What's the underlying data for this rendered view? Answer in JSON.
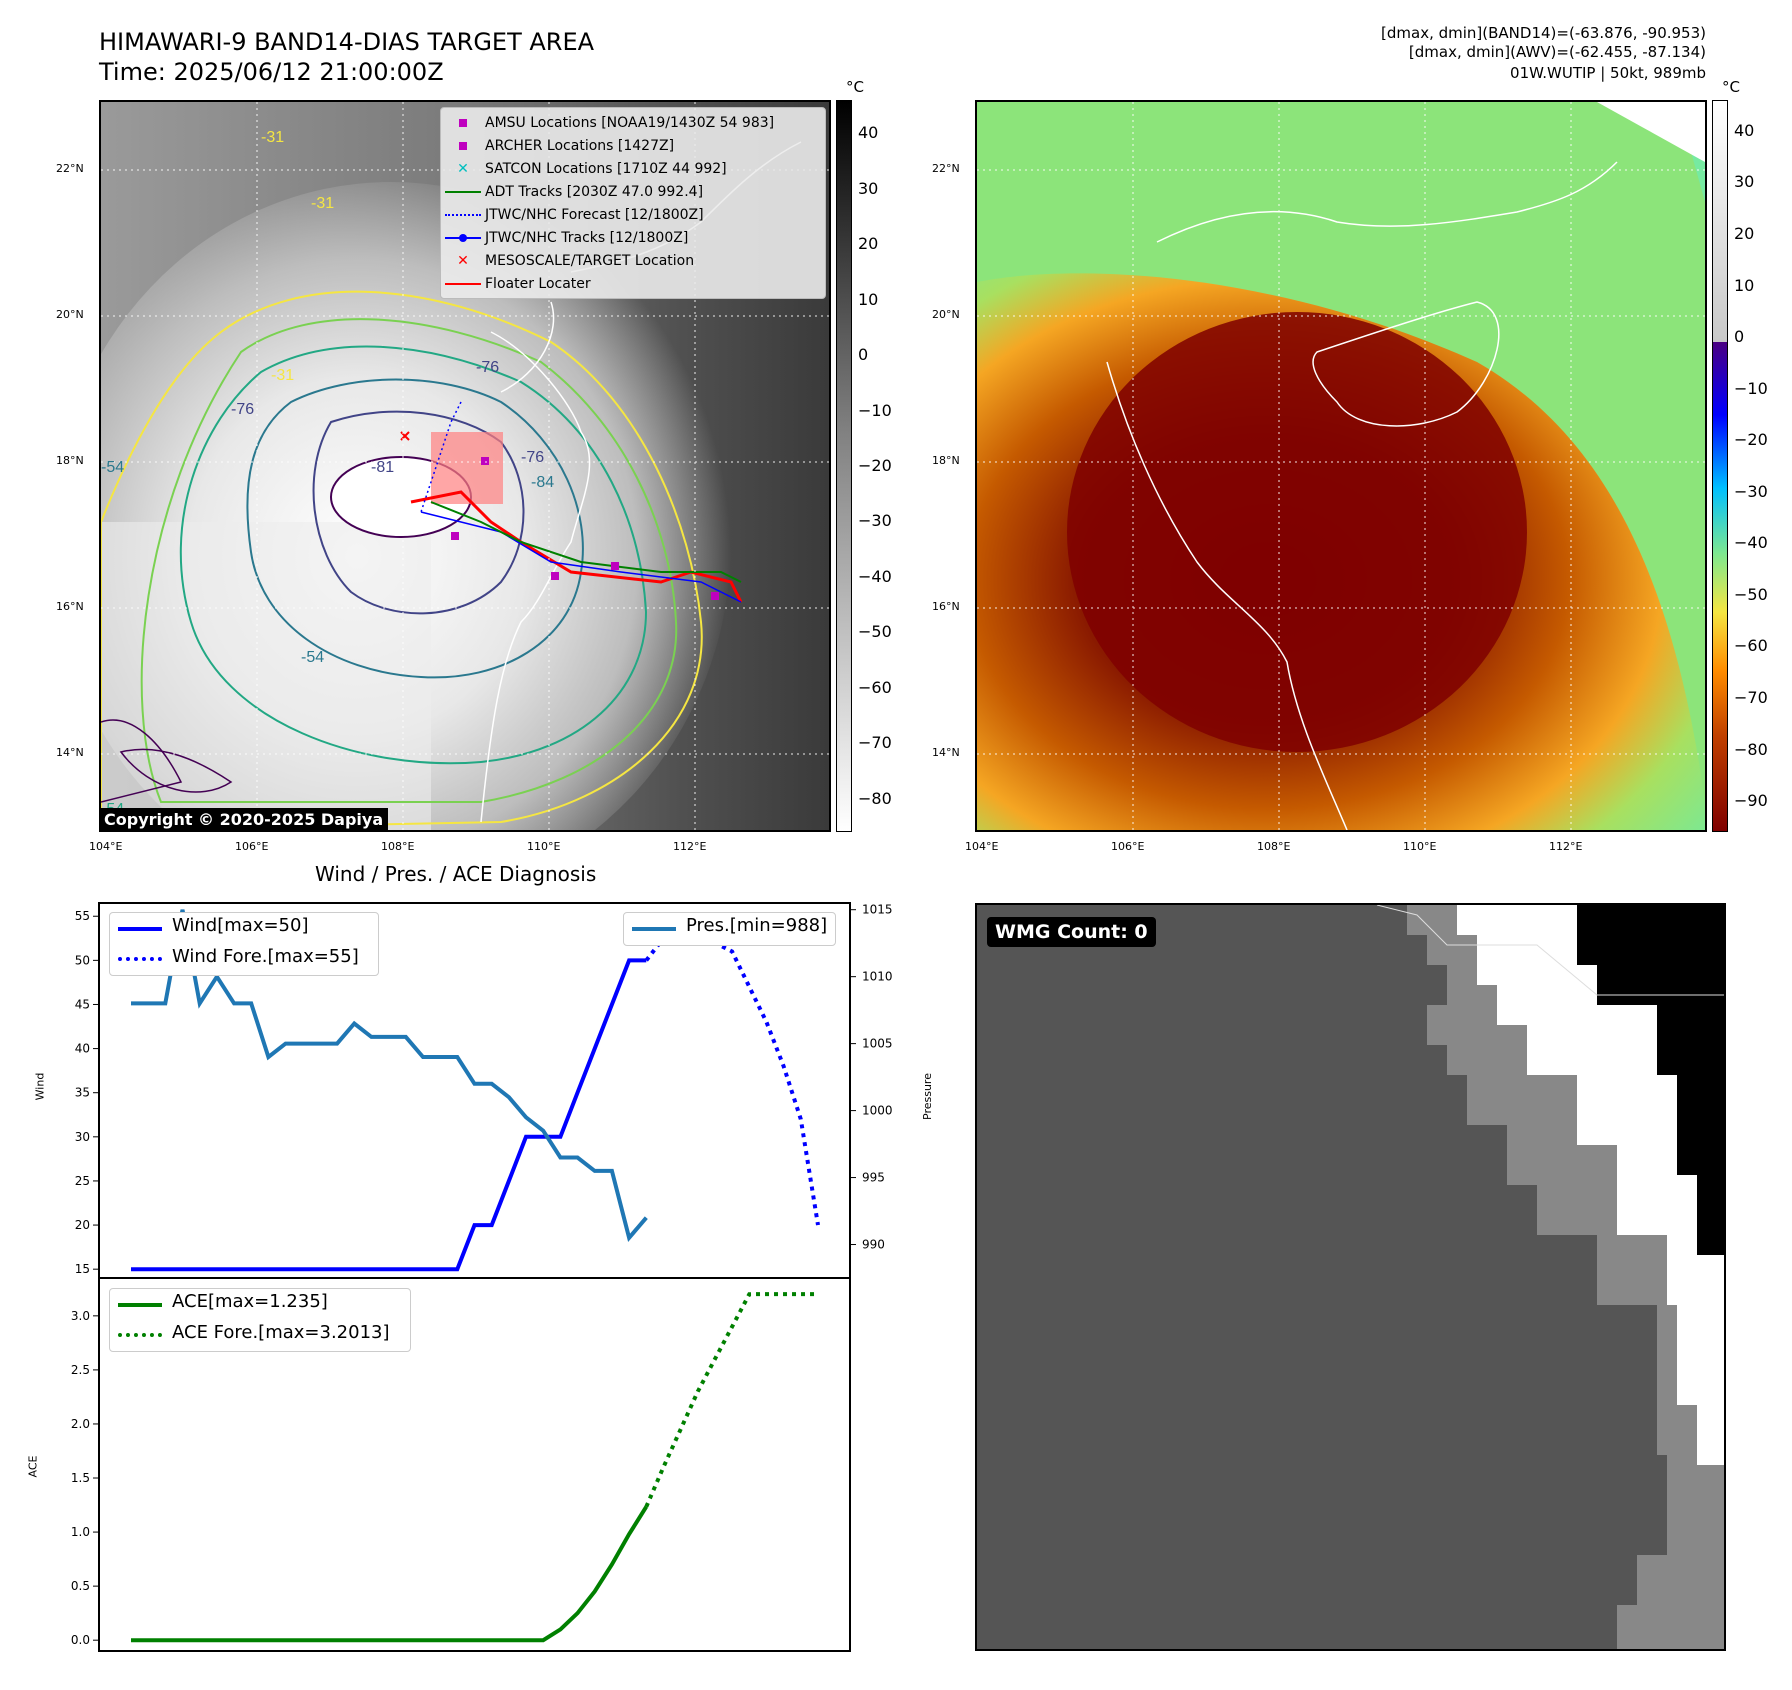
{
  "header": {
    "title": "HIMAWARI-9 BAND14-DIAS TARGET AREA",
    "time": "Time: 2025/06/12 21:00:00Z",
    "diag1": "[dmax, dmin](BAND14)=(-63.876, -90.953)",
    "diag2": "[dmax, dmin](AWV)=(-62.455, -87.134)",
    "diag3": "01W.WUTIP | 50kt, 989mb"
  },
  "map": {
    "lon_ticks": [
      "104°E",
      "106°E",
      "108°E",
      "110°E",
      "112°E"
    ],
    "lat_ticks": [
      "22°N",
      "20°N",
      "18°N",
      "16°N",
      "14°N"
    ],
    "copyright": "Copyright © 2020-2025 Dapiya",
    "contour_labels": [
      "-31",
      "-31",
      "-31",
      "-76",
      "-76",
      "-81",
      "-76",
      "-54",
      "-54",
      "-84",
      "-54"
    ],
    "legend": [
      {
        "label": "AMSU Locations [NOAA19/1430Z 54 983]",
        "color": "#bf00bf",
        "symbol": "square"
      },
      {
        "label": "ARCHER Locations [1427Z]",
        "color": "#bf00bf",
        "symbol": "square"
      },
      {
        "label": "SATCON Locations [1710Z 44 992]",
        "color": "#00bfbf",
        "symbol": "x"
      },
      {
        "label": "ADT Tracks [2030Z 47.0 992.4]",
        "color": "#008000",
        "symbol": "line"
      },
      {
        "label": "JTWC/NHC Forecast [12/1800Z]",
        "color": "#0000ff",
        "symbol": "dotted"
      },
      {
        "label": "JTWC/NHC Tracks [12/1800Z]",
        "color": "#0000ff",
        "symbol": "line-dot"
      },
      {
        "label": "MESOSCALE/TARGET Location",
        "color": "#ff0000",
        "symbol": "x"
      },
      {
        "label": "Floater Locater",
        "color": "#ff0000",
        "symbol": "line"
      }
    ]
  },
  "colorbar_left": {
    "unit": "°C",
    "ticks": [
      "40",
      "30",
      "20",
      "10",
      "0",
      "−10",
      "−20",
      "−30",
      "−40",
      "−50",
      "−60",
      "−70",
      "−80"
    ]
  },
  "colorbar_right": {
    "unit": "°C",
    "ticks": [
      "40",
      "30",
      "20",
      "10",
      "0",
      "−10",
      "−20",
      "−30",
      "−40",
      "−50",
      "−60",
      "−70",
      "−80",
      "−90"
    ]
  },
  "wmg": {
    "label": "WMG Count: 0"
  },
  "chart_data": [
    {
      "type": "line",
      "title": "Wind / Pres. / ACE Diagnosis",
      "ylabel": "Wind",
      "y2label": "Pressure",
      "ylim": [
        14,
        56.5
      ],
      "y2lim": [
        987.5,
        1015.5
      ],
      "yticks": [
        "55",
        "50",
        "45",
        "40",
        "35",
        "30",
        "25",
        "20",
        "15"
      ],
      "y2ticks": [
        "1015",
        "1010",
        "1005",
        "1000",
        "995",
        "990"
      ],
      "xlim": [
        0,
        40
      ],
      "series": [
        {
          "name": "Wind[max=50]",
          "color": "#0000ff",
          "style": "solid",
          "axis": "left",
          "x": [
            0,
            1,
            2,
            3,
            4,
            5,
            6,
            7,
            8,
            9,
            10,
            11,
            12,
            13,
            14,
            15,
            16,
            17,
            18,
            19,
            20,
            21,
            22,
            23,
            24,
            25,
            26,
            27,
            28,
            29,
            30
          ],
          "values": [
            15,
            15,
            15,
            15,
            15,
            15,
            15,
            15,
            15,
            15,
            15,
            15,
            15,
            15,
            15,
            15,
            15,
            15,
            15,
            15,
            20,
            20,
            25,
            30,
            30,
            30,
            35,
            40,
            45,
            50,
            50
          ]
        },
        {
          "name": "Wind Fore.[max=55]",
          "color": "#0000ff",
          "style": "dotted",
          "axis": "left",
          "x": [
            30,
            31,
            32,
            33,
            34,
            35,
            36,
            37,
            38,
            39,
            40
          ],
          "values": [
            50,
            52.5,
            55,
            53,
            52,
            51,
            47,
            43,
            38,
            32,
            20
          ]
        },
        {
          "name": "Pres.[min=988]",
          "color": "#1f77b4",
          "style": "solid",
          "axis": "right",
          "x": [
            0,
            1,
            2,
            3,
            4,
            5,
            6,
            7,
            8,
            9,
            10,
            11,
            12,
            13,
            14,
            15,
            16,
            17,
            18,
            19,
            20,
            21,
            22,
            23,
            24,
            25,
            26,
            27,
            28,
            29,
            30
          ],
          "values": [
            1008,
            1008,
            1008,
            1015,
            1008,
            1010,
            1008,
            1008,
            1004,
            1005,
            1005,
            1005,
            1005,
            1006.5,
            1005.5,
            1005.5,
            1005.5,
            1004,
            1004,
            1004,
            1002,
            1002,
            1001,
            999.5,
            998.5,
            996.5,
            996.5,
            995.5,
            995.5,
            990.5,
            992
          ]
        }
      ]
    },
    {
      "type": "line",
      "ylabel": "ACE",
      "ylim": [
        -0.1,
        3.35
      ],
      "xlim": [
        0,
        40
      ],
      "yticks": [
        "3.0",
        "2.5",
        "2.0",
        "1.5",
        "1.0",
        "0.5",
        "0.0"
      ],
      "series": [
        {
          "name": "ACE[max=1.235]",
          "color": "#008000",
          "style": "solid",
          "x": [
            0,
            1,
            2,
            3,
            4,
            5,
            6,
            7,
            8,
            9,
            10,
            11,
            12,
            13,
            14,
            15,
            16,
            17,
            18,
            19,
            20,
            21,
            22,
            23,
            24,
            25,
            26,
            27,
            28,
            29,
            30
          ],
          "values": [
            0,
            0,
            0,
            0,
            0,
            0,
            0,
            0,
            0,
            0,
            0,
            0,
            0,
            0,
            0,
            0,
            0,
            0,
            0,
            0,
            0,
            0,
            0,
            0,
            0,
            0.1,
            0.25,
            0.45,
            0.7,
            0.98,
            1.235
          ]
        },
        {
          "name": "ACE Fore.[max=3.2013]",
          "color": "#008000",
          "style": "dotted",
          "x": [
            30,
            31,
            32,
            33,
            34,
            35,
            36,
            37,
            38,
            39,
            40
          ],
          "values": [
            1.235,
            1.6,
            1.95,
            2.3,
            2.6,
            2.9,
            3.2,
            3.2013,
            3.2013,
            3.2013,
            3.2013
          ]
        }
      ]
    }
  ]
}
